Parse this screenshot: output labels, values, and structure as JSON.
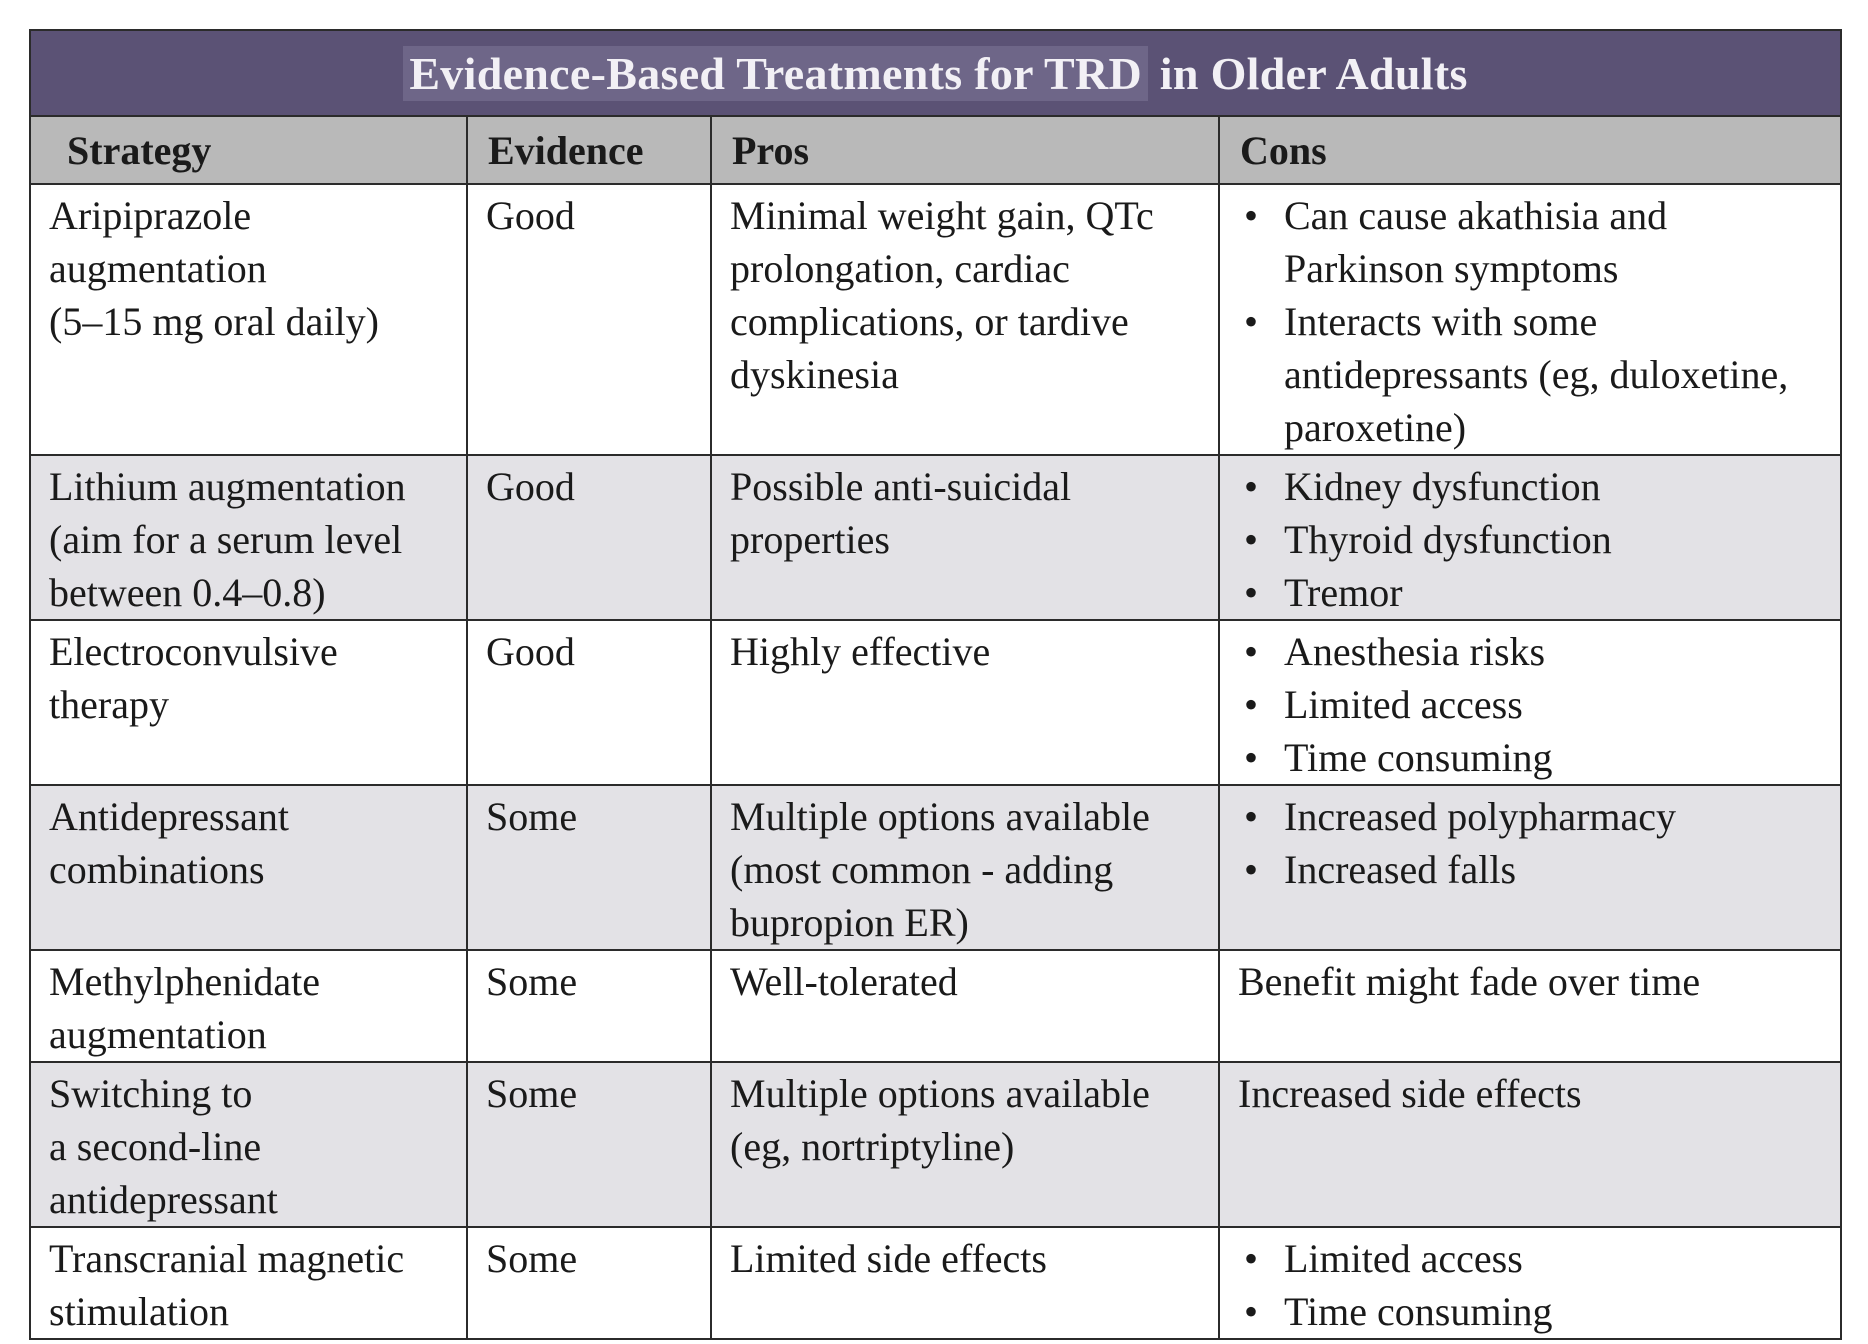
{
  "title": {
    "highlighted": "Evidence-Based Treatments for TRD",
    "rest": " in Older Adults"
  },
  "headers": [
    "Strategy",
    "Evidence",
    "Pros",
    "Cons"
  ],
  "rows": [
    {
      "strategy": [
        "Aripiprazole",
        "augmentation",
        "(5–15 mg oral daily)"
      ],
      "evidence": "Good",
      "pros": "Minimal weight gain, QTc prolongation, cardiac complications, or tardive dyskinesia",
      "cons_bullets": [
        "Can cause akathisia and Parkinson symptoms",
        "Interacts with some antidepressants (eg, duloxetine, paroxetine)"
      ],
      "cons_text": ""
    },
    {
      "strategy": [
        "Lithium augmentation",
        "(aim for a serum level",
        "between 0.4–0.8)"
      ],
      "evidence": "Good",
      "pros": "Possible anti-suicidal properties",
      "cons_bullets": [
        "Kidney dysfunction",
        "Thyroid dysfunction",
        "Tremor"
      ],
      "cons_text": ""
    },
    {
      "strategy": [
        "Electroconvulsive",
        "therapy"
      ],
      "evidence": "Good",
      "pros": "Highly effective",
      "cons_bullets": [
        "Anesthesia risks",
        "Limited access",
        "Time consuming"
      ],
      "cons_text": ""
    },
    {
      "strategy": [
        "Antidepressant",
        "combinations"
      ],
      "evidence": "Some",
      "pros": "Multiple options available (most common - adding bupropion ER)",
      "cons_bullets": [
        "Increased polypharmacy",
        "Increased falls"
      ],
      "cons_text": ""
    },
    {
      "strategy": [
        "Methylphenidate",
        "augmentation"
      ],
      "evidence": "Some",
      "pros": "Well-tolerated",
      "cons_bullets": [],
      "cons_text": "Benefit might fade over time"
    },
    {
      "strategy": [
        "Switching to",
        "a second-line",
        "antidepressant"
      ],
      "evidence": "Some",
      "pros": "Multiple options available (eg, nortriptyline)",
      "cons_bullets": [],
      "cons_text": "Increased side effects"
    },
    {
      "strategy": [
        "Transcranial magnetic",
        "stimulation"
      ],
      "evidence": "Some",
      "pros": "Limited side effects",
      "cons_bullets": [
        "Limited access",
        "Time consuming"
      ],
      "cons_text": ""
    }
  ],
  "colors": {
    "title_bg": "#5b5275",
    "title_highlight": "#6e6688",
    "header_bg": "#b9b9b9",
    "shaded_row_bg": "#e3e2e6",
    "border": "#2b2b2b"
  }
}
